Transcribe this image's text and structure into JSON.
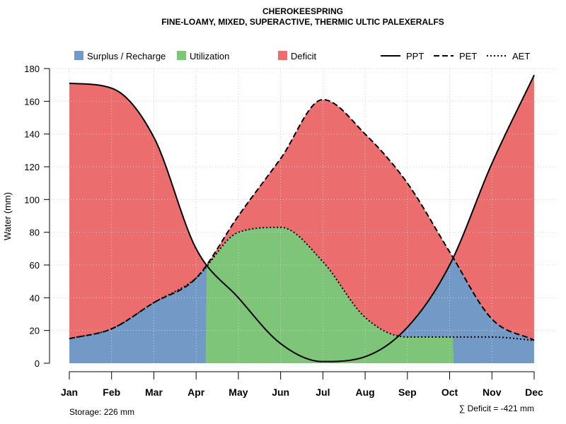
{
  "chart_data": {
    "type": "area",
    "title": "CHEROKEESPRING",
    "subtitle": "FINE-LOAMY, MIXED, SUPERACTIVE, THERMIC ULTIC PALEXERALFS",
    "xlabel": "",
    "ylabel": "Water (mm)",
    "ylim": [
      0,
      180
    ],
    "yticks": [
      "0",
      "20",
      "40",
      "60",
      "80",
      "100",
      "120",
      "140",
      "160",
      "180"
    ],
    "categories": [
      "Jan",
      "Feb",
      "Mar",
      "Apr",
      "May",
      "Jun",
      "Jul",
      "Aug",
      "Sep",
      "Oct",
      "Nov",
      "Dec"
    ],
    "series": [
      {
        "name": "PPT",
        "style": "solid",
        "values": [
          171,
          168,
          138,
          70,
          40,
          12,
          1,
          4,
          22,
          60,
          122,
          176
        ]
      },
      {
        "name": "PET",
        "style": "dashed",
        "values": [
          15,
          21,
          37,
          52,
          90,
          125,
          161,
          140,
          110,
          68,
          27,
          14
        ]
      },
      {
        "name": "AET",
        "style": "dotted",
        "values": [
          15,
          21,
          37,
          52,
          80,
          83,
          62,
          28,
          16,
          16,
          16,
          14
        ]
      }
    ],
    "areas": [
      {
        "name": "Surplus / Recharge",
        "color": "#7399C6"
      },
      {
        "name": "Utilization",
        "color": "#7EC57A"
      },
      {
        "name": "Deficit",
        "color": "#EC6D6E"
      }
    ],
    "grid": true,
    "legend": "top",
    "annotations": {
      "storage": "Storage: 226 mm",
      "deficit": "∑ Deficit = -421 mm"
    }
  }
}
